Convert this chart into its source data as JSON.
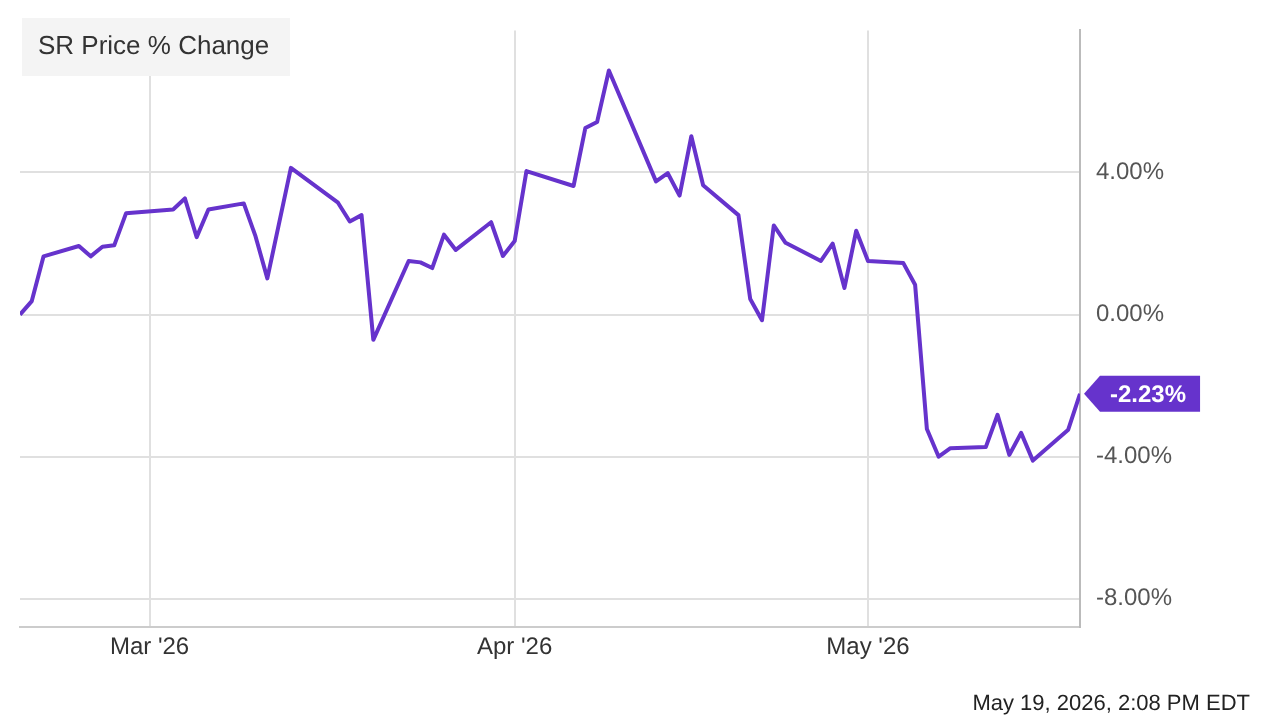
{
  "chart_data": {
    "type": "line",
    "title": "SR Price % Change",
    "x": [
      "2026-02-18",
      "2026-02-19",
      "2026-02-20",
      "2026-02-23",
      "2026-02-24",
      "2026-02-25",
      "2026-02-26",
      "2026-02-27",
      "2026-03-03",
      "2026-03-04",
      "2026-03-05",
      "2026-03-06",
      "2026-03-09",
      "2026-03-10",
      "2026-03-11",
      "2026-03-13",
      "2026-03-17",
      "2026-03-18",
      "2026-03-19",
      "2026-03-20",
      "2026-03-23",
      "2026-03-24",
      "2026-03-25",
      "2026-03-26",
      "2026-03-27",
      "2026-03-30",
      "2026-03-31",
      "2026-04-01",
      "2026-04-02",
      "2026-04-06",
      "2026-04-07",
      "2026-04-08",
      "2026-04-09",
      "2026-04-13",
      "2026-04-14",
      "2026-04-15",
      "2026-04-16",
      "2026-04-17",
      "2026-04-20",
      "2026-04-21",
      "2026-04-22",
      "2026-04-23",
      "2026-04-24",
      "2026-04-27",
      "2026-04-28",
      "2026-04-29",
      "2026-04-30",
      "2026-05-01",
      "2026-05-04",
      "2026-05-05",
      "2026-05-06",
      "2026-05-07",
      "2026-05-08",
      "2026-05-11",
      "2026-05-12",
      "2026-05-13",
      "2026-05-14",
      "2026-05-15",
      "2026-05-18",
      "2026-05-19"
    ],
    "series": [
      {
        "color": "#6633cc",
        "values": [
          0.0,
          0.38,
          1.64,
          1.93,
          1.64,
          1.91,
          1.95,
          2.85,
          2.96,
          3.27,
          2.18,
          2.96,
          3.13,
          2.2,
          1.02,
          4.13,
          3.15,
          2.62,
          2.8,
          -0.71,
          1.51,
          1.47,
          1.31,
          2.25,
          1.82,
          2.6,
          1.65,
          2.07,
          4.04,
          3.62,
          5.25,
          5.42,
          6.87,
          3.75,
          3.98,
          3.35,
          5.02,
          3.64,
          2.8,
          0.44,
          -0.16,
          2.51,
          2.02,
          1.51,
          2.0,
          0.75,
          2.36,
          1.51,
          1.45,
          0.84,
          -3.22,
          -4.0,
          -3.76,
          -3.73,
          -2.82,
          -3.95,
          -3.33,
          -4.11,
          -3.24,
          -2.23
        ]
      }
    ],
    "xlim": [
      "2026-02-18",
      "2026-05-19"
    ],
    "xticks": [
      {
        "value": "2026-03-01",
        "label": "Mar '26"
      },
      {
        "value": "2026-04-01",
        "label": "Apr '26"
      },
      {
        "value": "2026-05-01",
        "label": "May '26"
      }
    ],
    "ylim": [
      -8.8,
      8.0
    ],
    "yticks": [
      {
        "value": -8,
        "label": "-8.00%"
      },
      {
        "value": -4,
        "label": "-4.00%"
      },
      {
        "value": 0,
        "label": "0.00%"
      },
      {
        "value": 4,
        "label": "4.00%"
      }
    ],
    "annotations": [
      {
        "text": "-2.23%",
        "x": "2026-05-19",
        "y": -2.23
      },
      "May 19, 2026, 2:08 PM EDT"
    ],
    "grid": true,
    "legend": false,
    "marker": "none",
    "line_style": "solid"
  }
}
